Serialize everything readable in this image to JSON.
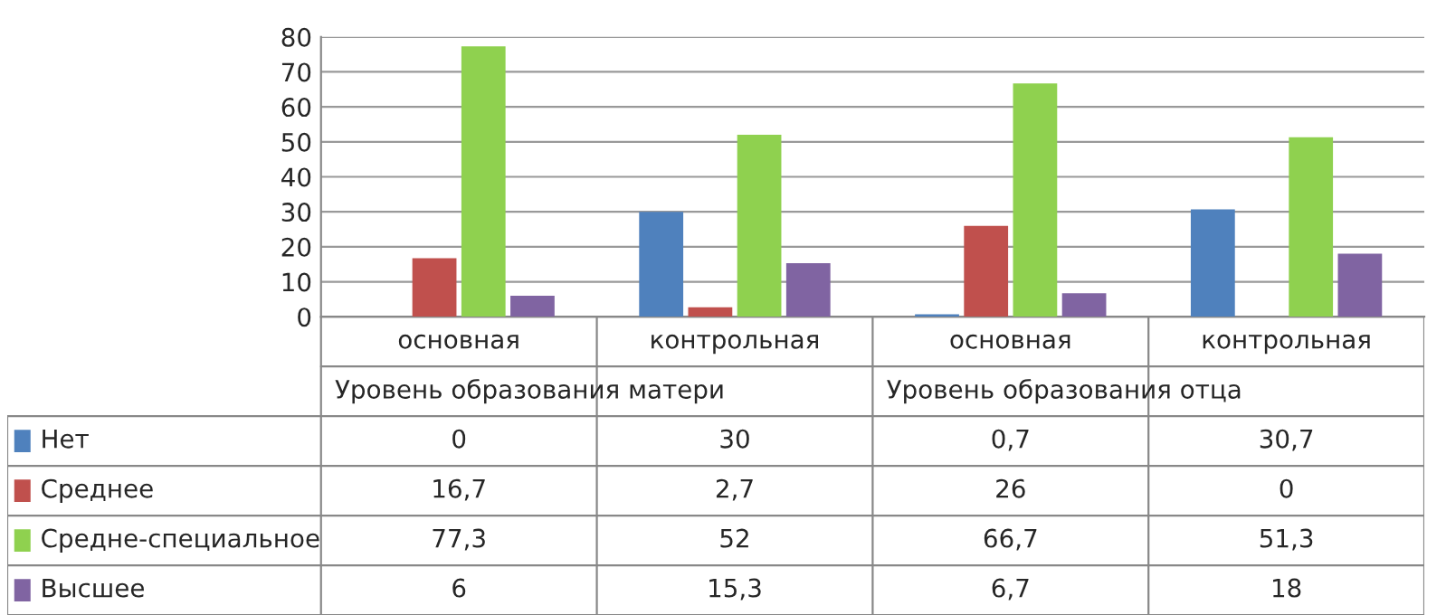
{
  "chart_data": {
    "type": "bar",
    "categories": [
      "основная",
      "контрольная",
      "основная",
      "контрольная"
    ],
    "series": [
      {
        "name": "Нет",
        "color": "#4f81bd",
        "values": [
          0,
          30,
          0.7,
          30.7
        ],
        "value_labels": [
          "0",
          "30",
          "0,7",
          "30,7"
        ]
      },
      {
        "name": "Среднее",
        "color": "#c0504d",
        "values": [
          16.7,
          2.7,
          26,
          0
        ],
        "value_labels": [
          "16,7",
          "2,7",
          "26",
          "0"
        ]
      },
      {
        "name": "Средне-специальное",
        "color": "#8fd14f",
        "values": [
          77.3,
          52,
          66.7,
          51.3
        ],
        "value_labels": [
          "77,3",
          "52",
          "66,7",
          "51,3"
        ]
      },
      {
        "name": "Высшее",
        "color": "#8064a2",
        "values": [
          6,
          15.3,
          6.7,
          18
        ],
        "value_labels": [
          "6",
          "15,3",
          "6,7",
          "18"
        ]
      }
    ],
    "annotations": [
      "Уровень образования матери",
      "Уровень образования отца"
    ],
    "ylim": [
      0,
      80
    ],
    "yticks": [
      0,
      10,
      20,
      30,
      40,
      50,
      60,
      70,
      80
    ],
    "grid": "y",
    "legend": "left"
  }
}
